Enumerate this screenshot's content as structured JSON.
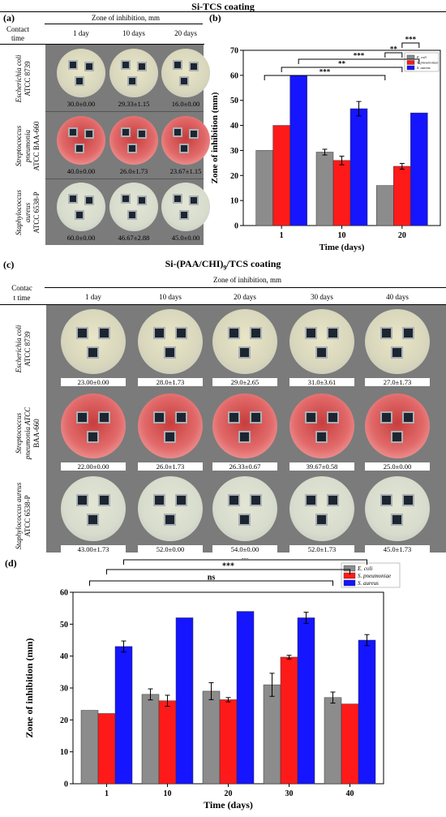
{
  "sectionA": {
    "title": "Si-TCS coating",
    "panel_label": "(a)",
    "header": "Zone of inhibition, mm",
    "contact_time": "Contact time",
    "columns": [
      "1 day",
      "10 days",
      "20 days"
    ],
    "rows": [
      {
        "label": "Escherichia coli",
        "label2": "ATCC 8739",
        "values": [
          "30.0±0.00",
          "29.33±1.15",
          "16.0±0.00"
        ]
      },
      {
        "label": "Streptococcus pneumonia",
        "label2": "ATCC BAA-660",
        "values": [
          "40.0±0.00",
          "26.0±1.73",
          "23.67±1.15"
        ]
      },
      {
        "label": "Staphylococcus aureus",
        "label2": "ATCC 6538-P",
        "values": [
          "60.0±0.00",
          "46.67±2.88",
          "45.0±0.00"
        ]
      }
    ]
  },
  "sectionC": {
    "title": "Si-(PAA/CHI)",
    "title_sub": "9",
    "title_end": "/TCS coating",
    "panel_label": "(c)",
    "header": "Zone of inhibition, mm",
    "contact_time_1": "Contac",
    "contact_time_2": "t time",
    "columns": [
      "1 day",
      "10 days",
      "20 days",
      "30 days",
      "40 days"
    ],
    "rows": [
      {
        "label": "Escherichia coli",
        "label2": "ATCC 8739",
        "values": [
          "23.00±0.00",
          "28.0±1.73",
          "29.0±2.65",
          "31.0±3.61",
          "27.0±1.73"
        ]
      },
      {
        "label": "Streptococcus",
        "label2": "pneumonia ATCC",
        "label3": "BAA-660",
        "values": [
          "22.00±0.00",
          "26.0±1.73",
          "26.33±0.67",
          "39.67±0.58",
          "25.0±0.00"
        ]
      },
      {
        "label": "Staphylococcus aureus",
        "label2": "ATCC 6538-P",
        "values": [
          "43.00±1.73",
          "52.0±0.00",
          "54.0±0.00",
          "52.0±1.73",
          "45.0±1.73"
        ]
      }
    ]
  },
  "colors": {
    "ecoli": "#8c8c8c",
    "spneu": "#ff1a1a",
    "saureus": "#1515ff",
    "plate_grey": "#7b7b7b"
  },
  "chart_data": [
    {
      "panel": "(b)",
      "type": "bar",
      "xlabel": "Time (days)",
      "ylabel": "Zone of inhibition (mm)",
      "categories": [
        "1",
        "10",
        "20"
      ],
      "ylim": [
        0,
        70
      ],
      "yticks": [
        0,
        10,
        20,
        30,
        40,
        50,
        60,
        70
      ],
      "series": [
        {
          "name": "E. coli",
          "values": [
            30.0,
            29.33,
            16.0
          ],
          "errors": [
            0.0,
            1.15,
            0.0
          ]
        },
        {
          "name": "S. pneumoniae",
          "values": [
            40.0,
            26.0,
            23.67
          ],
          "errors": [
            0.0,
            1.73,
            1.15
          ]
        },
        {
          "name": "S. aureus",
          "values": [
            60.0,
            46.67,
            45.0
          ],
          "errors": [
            0.0,
            2.88,
            0.0
          ]
        }
      ],
      "significance": [
        "***",
        "**",
        "***",
        "**",
        "***"
      ],
      "legend": "top-right"
    },
    {
      "panel": "(d)",
      "type": "bar",
      "xlabel": "Time (days)",
      "ylabel": "Zone of inhibition (mm)",
      "categories": [
        "1",
        "10",
        "20",
        "30",
        "40"
      ],
      "ylim": [
        0,
        60
      ],
      "yticks": [
        0,
        10,
        20,
        30,
        40,
        50,
        60
      ],
      "series": [
        {
          "name": "E. coli",
          "values": [
            23.0,
            28.0,
            29.0,
            31.0,
            27.0
          ],
          "errors": [
            0.0,
            1.73,
            2.65,
            3.61,
            1.73
          ]
        },
        {
          "name": "S. pneumoniae",
          "values": [
            22.0,
            26.0,
            26.33,
            39.67,
            25.0
          ],
          "errors": [
            0.0,
            1.73,
            0.67,
            0.58,
            0.0
          ]
        },
        {
          "name": "S. aureus",
          "values": [
            43.0,
            52.0,
            54.0,
            52.0,
            45.0
          ],
          "errors": [
            1.73,
            0.0,
            0.0,
            1.73,
            1.73
          ]
        }
      ],
      "significance": [
        "ns",
        "***",
        "ns",
        "ns",
        "***",
        "**"
      ],
      "legend": "top-right"
    }
  ]
}
